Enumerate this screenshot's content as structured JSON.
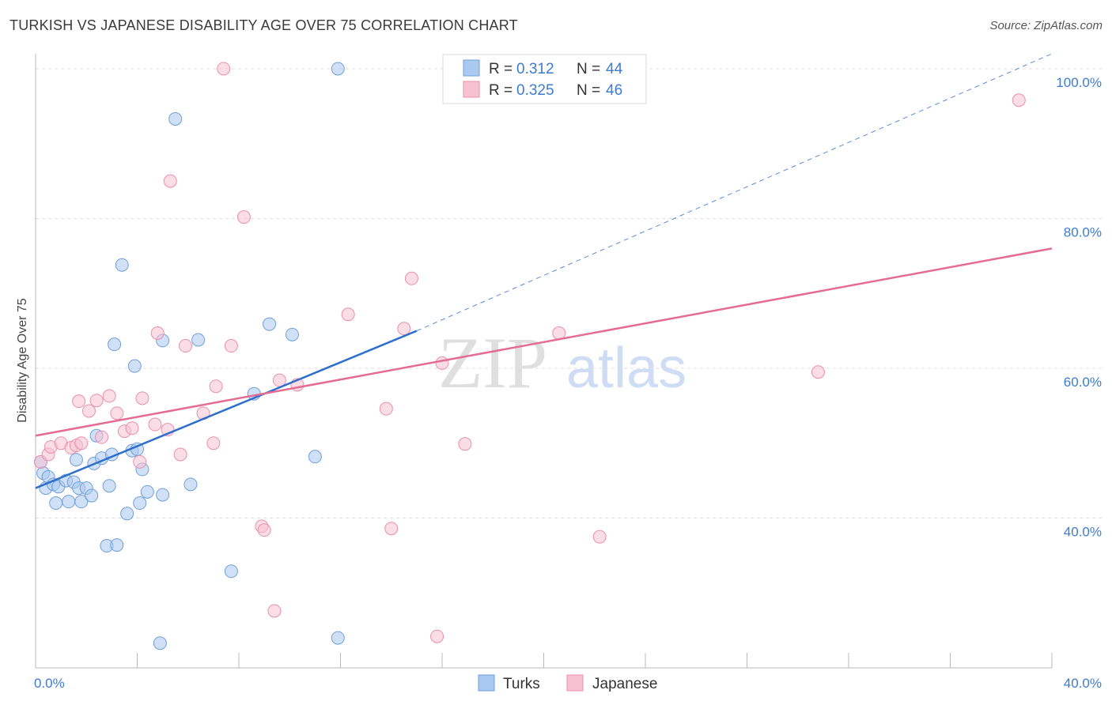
{
  "header": {
    "title": "TURKISH VS JAPANESE DISABILITY AGE OVER 75 CORRELATION CHART",
    "source": "Source: ZipAtlas.com"
  },
  "watermark": {
    "zip": "ZIP",
    "atlas": "atlas"
  },
  "legend": {
    "rows": [
      {
        "r_label": "R =",
        "r_value": "0.312",
        "n_label": "N =",
        "n_value": "44"
      },
      {
        "r_label": "R =",
        "r_value": "0.325",
        "n_label": "N =",
        "n_value": "46"
      }
    ]
  },
  "bottom_legend": {
    "turks": "Turks",
    "japanese": "Japanese"
  },
  "chart_data": {
    "type": "scatter",
    "title": "TURKISH VS JAPANESE DISABILITY AGE OVER 75 CORRELATION CHART",
    "ylabel": "Disability Age Over 75",
    "xlabel": "",
    "xlim": [
      0,
      40
    ],
    "ylim": [
      20,
      102
    ],
    "x_tick_labels": [
      "0.0%",
      "40.0%"
    ],
    "y_ticks": [
      {
        "value": 40,
        "label": "40.0%"
      },
      {
        "value": 60,
        "label": "60.0%"
      },
      {
        "value": 80,
        "label": "80.0%"
      },
      {
        "value": 100,
        "label": "100.0%"
      }
    ],
    "grid": true,
    "colors": {
      "turks_fill": "#a9c9f1",
      "turks_stroke": "#6f9fd8",
      "turks_line": "#2f6fcc",
      "japanese_fill": "#f7c1d1",
      "japanese_stroke": "#e890ab",
      "japanese_line": "#e46c93",
      "tick": "#3d7bd0"
    },
    "series": [
      {
        "name": "Turks",
        "R": 0.312,
        "N": 44,
        "trend": {
          "x0": 0,
          "y0": 44.0,
          "x1": 15.0,
          "y1": 65.0,
          "dashed_to_x": 40.0,
          "dashed_to_y": 102.0
        },
        "points": [
          [
            0.2,
            47.5
          ],
          [
            0.3,
            46.0
          ],
          [
            0.4,
            44.0
          ],
          [
            0.5,
            45.5
          ],
          [
            0.7,
            44.5
          ],
          [
            0.8,
            42.0
          ],
          [
            0.9,
            44.2
          ],
          [
            1.2,
            45.0
          ],
          [
            1.3,
            42.2
          ],
          [
            1.5,
            44.8
          ],
          [
            1.6,
            47.8
          ],
          [
            1.7,
            44.0
          ],
          [
            1.8,
            42.2
          ],
          [
            2.0,
            44.0
          ],
          [
            2.2,
            43.0
          ],
          [
            2.3,
            47.3
          ],
          [
            2.4,
            51.0
          ],
          [
            2.6,
            48.0
          ],
          [
            2.8,
            36.3
          ],
          [
            2.9,
            44.3
          ],
          [
            3.0,
            48.5
          ],
          [
            3.2,
            36.4
          ],
          [
            3.4,
            73.8
          ],
          [
            3.6,
            40.6
          ],
          [
            3.8,
            49.0
          ],
          [
            4.1,
            42.0
          ],
          [
            4.2,
            46.5
          ],
          [
            4.4,
            43.5
          ],
          [
            4.9,
            23.3
          ],
          [
            5.0,
            43.1
          ],
          [
            5.5,
            93.3
          ],
          [
            4.0,
            49.2
          ],
          [
            3.1,
            63.2
          ],
          [
            3.9,
            60.3
          ],
          [
            5.0,
            63.7
          ],
          [
            6.4,
            63.8
          ],
          [
            6.1,
            44.5
          ],
          [
            7.7,
            32.9
          ],
          [
            8.6,
            56.6
          ],
          [
            9.2,
            65.9
          ],
          [
            10.1,
            64.5
          ],
          [
            11.0,
            48.2
          ],
          [
            11.9,
            24.0
          ],
          [
            11.9,
            100.0
          ]
        ]
      },
      {
        "name": "Japanese",
        "R": 0.325,
        "N": 46,
        "trend": {
          "x0": 0,
          "y0": 51.0,
          "x1": 40.0,
          "y1": 76.0
        },
        "points": [
          [
            0.2,
            47.5
          ],
          [
            0.5,
            48.5
          ],
          [
            0.6,
            49.5
          ],
          [
            1.0,
            50.0
          ],
          [
            1.4,
            49.4
          ],
          [
            1.6,
            49.7
          ],
          [
            1.7,
            55.6
          ],
          [
            1.8,
            50.0
          ],
          [
            2.1,
            54.3
          ],
          [
            2.4,
            55.7
          ],
          [
            2.6,
            50.8
          ],
          [
            2.9,
            56.3
          ],
          [
            3.2,
            54.0
          ],
          [
            3.5,
            51.6
          ],
          [
            3.8,
            52.0
          ],
          [
            4.1,
            47.5
          ],
          [
            4.2,
            56.0
          ],
          [
            4.7,
            52.5
          ],
          [
            4.8,
            64.7
          ],
          [
            5.2,
            51.8
          ],
          [
            5.3,
            85.0
          ],
          [
            5.7,
            48.5
          ],
          [
            5.9,
            63.0
          ],
          [
            6.6,
            54.0
          ],
          [
            7.0,
            50.0
          ],
          [
            7.1,
            57.6
          ],
          [
            7.4,
            100.0
          ],
          [
            7.7,
            63.0
          ],
          [
            8.2,
            80.2
          ],
          [
            8.9,
            38.9
          ],
          [
            9.0,
            38.4
          ],
          [
            9.4,
            27.6
          ],
          [
            9.6,
            58.4
          ],
          [
            10.3,
            57.8
          ],
          [
            12.3,
            67.2
          ],
          [
            13.8,
            54.6
          ],
          [
            14.0,
            38.6
          ],
          [
            14.5,
            65.3
          ],
          [
            14.8,
            72.0
          ],
          [
            15.8,
            24.2
          ],
          [
            16.0,
            60.7
          ],
          [
            16.9,
            49.9
          ],
          [
            20.6,
            64.7
          ],
          [
            22.2,
            37.5
          ],
          [
            30.8,
            59.5
          ],
          [
            38.7,
            95.8
          ]
        ]
      }
    ]
  }
}
